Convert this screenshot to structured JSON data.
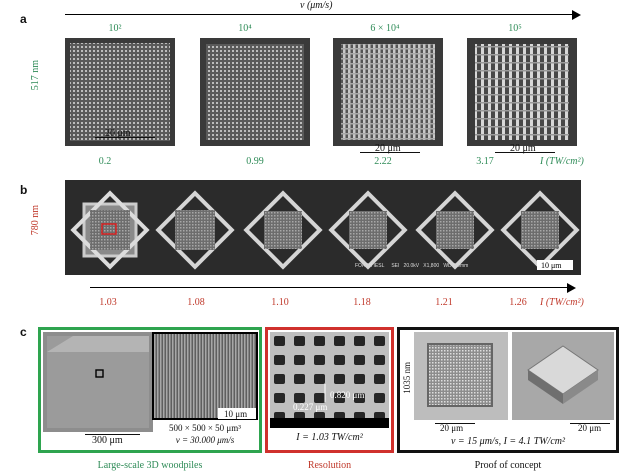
{
  "panel_a": {
    "label": "a",
    "axis_title": "v (μm/s)",
    "speeds": [
      "10²",
      "10⁴",
      "6 × 10⁴",
      "10⁵"
    ],
    "height_label": "517 nm",
    "scalebar": "20 μm",
    "intensities": [
      "0.2",
      "0.99",
      "2.22",
      "3.17"
    ],
    "intensity_axis": "I (TW/cm²)"
  },
  "panel_b": {
    "label": "b",
    "height_label": "780 nm",
    "sem_footer": [
      "FORTH IESL",
      "SEI",
      "20.0kV",
      "X1,800",
      "WD 8.0mm"
    ],
    "scalebar": "10 μm",
    "intensities": [
      "1.03",
      "1.08",
      "1.10",
      "1.18",
      "1.21",
      "1.26"
    ],
    "intensity_axis": "I (TW/cm²)"
  },
  "panel_c": {
    "label": "c",
    "group1": {
      "scalebar_left": "300 μm",
      "scalebar_right": "10 μm",
      "dims": "500 × 500 × 50 μm³",
      "speed": "v = 30.000 μm/s",
      "caption": "Large-scale 3D woodpiles",
      "color": "#2ea44f"
    },
    "group2": {
      "measure1": "0.820 μm",
      "measure2": "0.227 μm",
      "intensity": "I = 1.03 TW/cm²",
      "caption": "Resolution",
      "color": "#d0312d"
    },
    "group3": {
      "height_label": "1035 nm",
      "scalebar_left": "20 μm",
      "scalebar_right": "20 μm",
      "params": "v = 15 μm/s,  I = 4.1 TW/cm²",
      "caption": "Proof of concept",
      "color": "#111111"
    }
  }
}
